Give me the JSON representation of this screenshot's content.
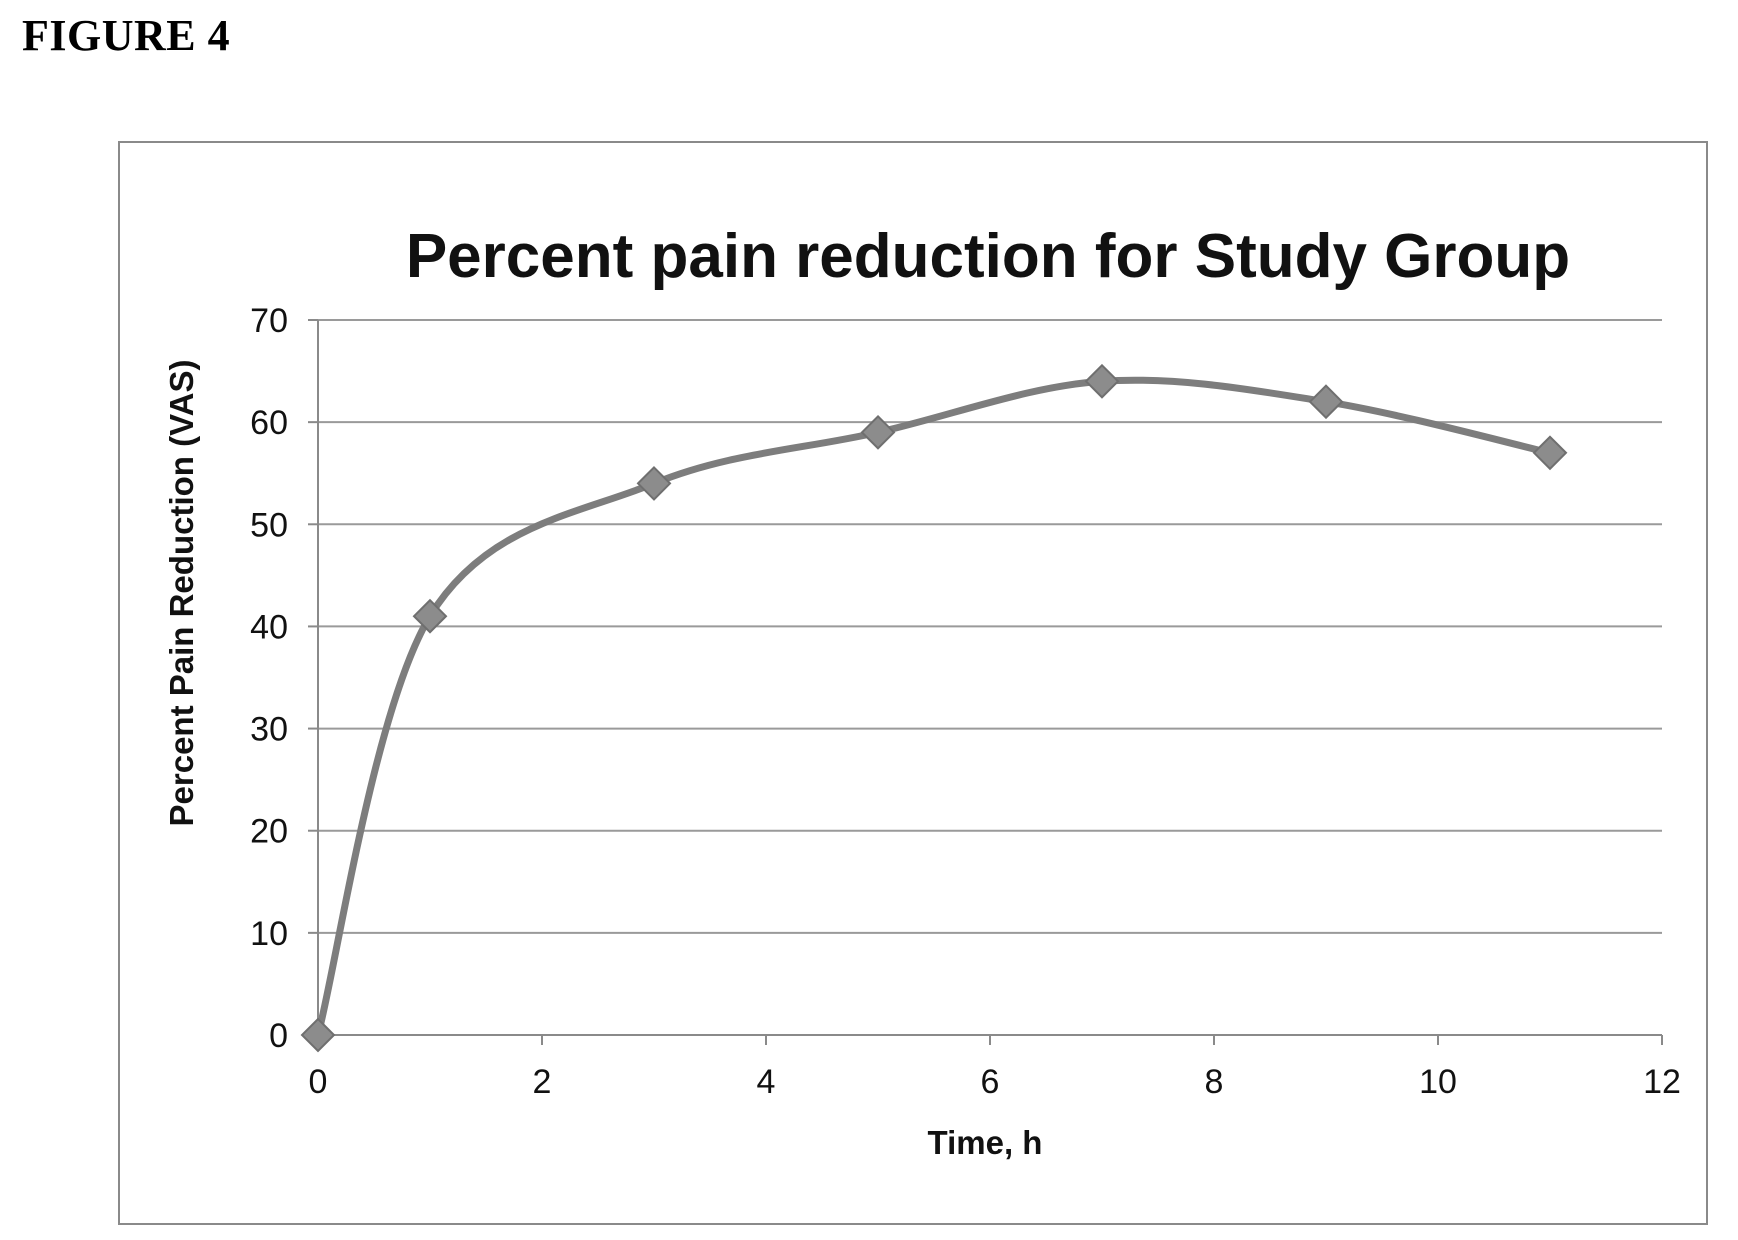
{
  "figure": {
    "label": "FIGURE 4"
  },
  "chart_data": {
    "type": "line",
    "title": "Percent pain reduction for Study Group",
    "xlabel": "Time, h",
    "ylabel": "Percent Pain Reduction (VAS)",
    "xlim": [
      0,
      12
    ],
    "ylim": [
      0,
      70
    ],
    "x_ticks": [
      0,
      2,
      4,
      6,
      8,
      10,
      12
    ],
    "y_ticks": [
      0,
      10,
      20,
      30,
      40,
      50,
      60,
      70
    ],
    "grid": "horizontal",
    "marker": "diamond",
    "smoothed": true,
    "series": [
      {
        "x": [
          0,
          1,
          3,
          5,
          7,
          9,
          11
        ],
        "values": [
          0,
          41,
          54,
          59,
          64,
          62,
          57
        ]
      }
    ],
    "colors": {
      "line": "#7d7d7d",
      "marker": "#8c8c8c",
      "grid": "#9a9a9a",
      "axis": "#8a8a8a",
      "text": "#111111"
    }
  }
}
